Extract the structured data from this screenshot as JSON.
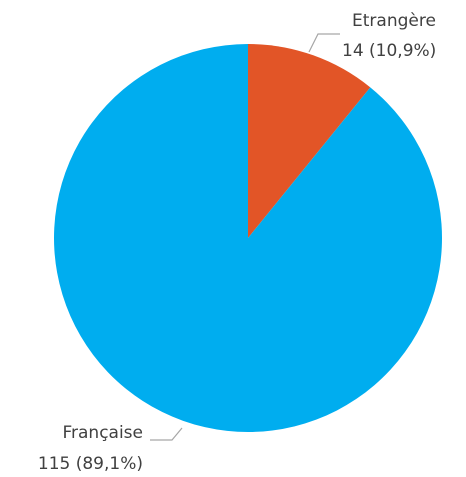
{
  "chart_data": {
    "type": "pie",
    "categories": [
      "Etrangère",
      "Française"
    ],
    "values": [
      14,
      115
    ],
    "value_labels": [
      "14 (10,9%)",
      "115 (89,1%)"
    ],
    "colors": [
      "#e25527",
      "#00adef"
    ]
  }
}
